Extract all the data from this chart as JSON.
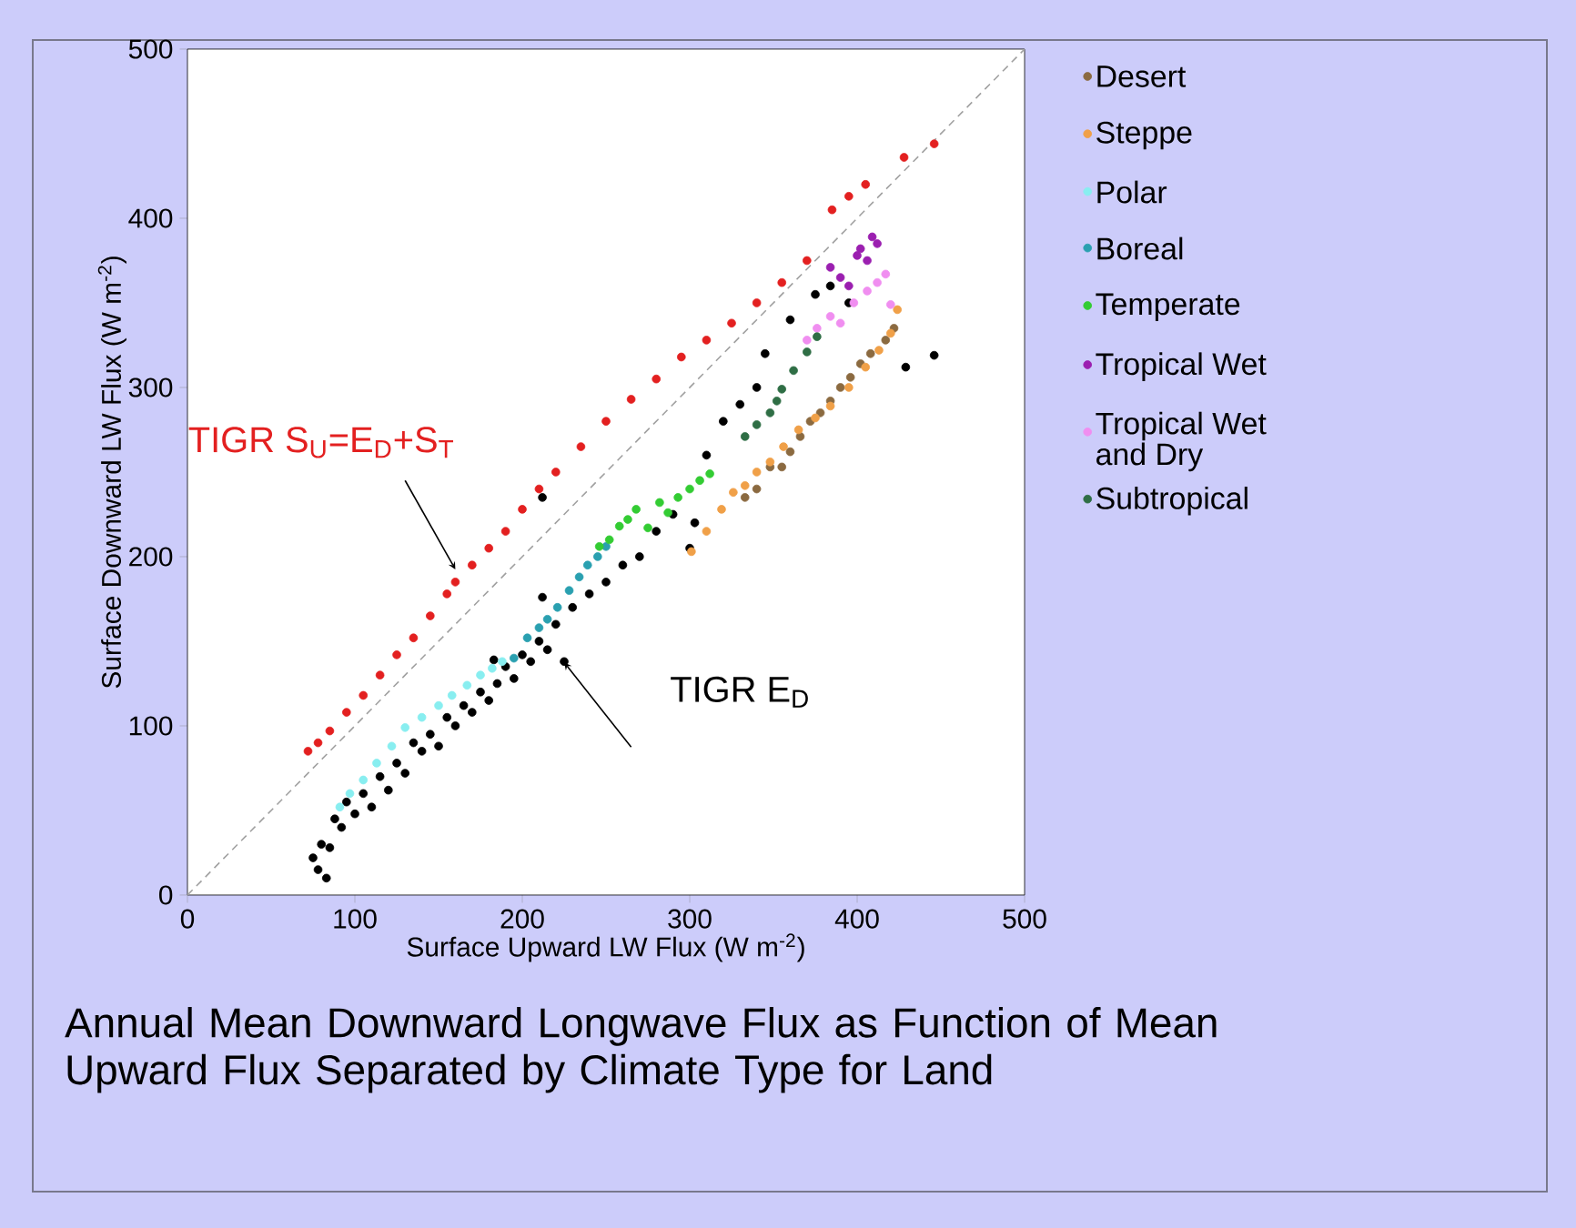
{
  "chart_data": {
    "type": "scatter",
    "title": "Annual Mean Downward Longwave Flux as Function of Mean Upward Flux Separated by Climate Type for Land",
    "xlabel": "Surface Upward LW Flux (W m$^{-2}$)",
    "ylabel": "Surface Downward LW Flux (W m$^{-2}$)",
    "xlim": [
      0,
      500
    ],
    "ylim": [
      0,
      500
    ],
    "xticks": [
      0,
      100,
      200,
      300,
      400,
      500
    ],
    "yticks": [
      0,
      100,
      200,
      300,
      400,
      500
    ],
    "marker": "circle",
    "legend": "right",
    "annotations": [
      "TIGR S$_{U}$=E$_{D}$+S$_{T}$",
      "TIGR E$_{D}$"
    ],
    "series": [
      {
        "type": "line",
        "line_style": "dashed",
        "marker": "none",
        "color": "#a0a0a0",
        "x": [
          0,
          500
        ],
        "values": [
          0,
          500
        ]
      },
      {
        "color": "#e32020",
        "x": [
          72,
          78,
          85,
          95,
          105,
          115,
          125,
          135,
          145,
          155,
          160,
          170,
          180,
          190,
          200,
          210,
          220,
          235,
          250,
          265,
          280,
          295,
          310,
          325,
          340,
          355,
          370,
          385,
          395,
          405,
          428,
          446
        ],
        "values": [
          85,
          90,
          97,
          108,
          118,
          130,
          142,
          152,
          165,
          178,
          185,
          195,
          205,
          215,
          228,
          240,
          250,
          265,
          280,
          293,
          305,
          318,
          328,
          338,
          350,
          362,
          375,
          405,
          413,
          420,
          436,
          444
        ]
      },
      {
        "color": "#000000",
        "x": [
          75,
          78,
          80,
          83,
          85,
          88,
          92,
          95,
          100,
          105,
          110,
          115,
          120,
          125,
          130,
          135,
          140,
          145,
          150,
          155,
          160,
          165,
          170,
          175,
          180,
          183,
          185,
          190,
          195,
          200,
          205,
          210,
          212,
          212,
          215,
          220,
          225,
          230,
          240,
          250,
          260,
          270,
          280,
          290,
          300,
          303,
          310,
          320,
          330,
          340,
          345,
          360,
          375,
          384,
          395,
          429,
          446
        ],
        "values": [
          22,
          15,
          30,
          10,
          28,
          45,
          40,
          55,
          48,
          60,
          52,
          70,
          62,
          78,
          72,
          90,
          85,
          95,
          88,
          105,
          100,
          112,
          108,
          120,
          115,
          139,
          125,
          135,
          128,
          142,
          138,
          150,
          176,
          235,
          145,
          160,
          138,
          170,
          178,
          185,
          195,
          200,
          215,
          225,
          205,
          220,
          260,
          280,
          290,
          300,
          320,
          340,
          355,
          360,
          350,
          312,
          319
        ]
      },
      {
        "name": "Desert",
        "color": "#8b6a40",
        "x": [
          333,
          340,
          348,
          355,
          360,
          366,
          372,
          378,
          384,
          390,
          396,
          402,
          408,
          417,
          422
        ],
        "values": [
          235,
          240,
          253,
          253,
          262,
          271,
          280,
          285,
          292,
          300,
          306,
          314,
          320,
          328,
          335
        ]
      },
      {
        "name": "Steppe",
        "color": "#f0a048",
        "x": [
          301,
          310,
          319,
          326,
          333,
          340,
          348,
          356,
          365,
          375,
          384,
          395,
          405,
          413,
          420,
          424
        ],
        "values": [
          203,
          215,
          228,
          238,
          242,
          250,
          256,
          265,
          275,
          282,
          289,
          300,
          312,
          322,
          332,
          346
        ]
      },
      {
        "name": "Polar",
        "color": "#88eef0",
        "x": [
          91,
          97,
          105,
          113,
          122,
          130,
          140,
          150,
          158,
          167,
          175,
          182,
          188
        ],
        "values": [
          52,
          60,
          68,
          78,
          88,
          99,
          105,
          112,
          118,
          124,
          130,
          134,
          138
        ]
      },
      {
        "name": "Boreal",
        "color": "#2aa0b0",
        "x": [
          195,
          203,
          210,
          215,
          221,
          228,
          234,
          239,
          245,
          250
        ],
        "values": [
          140,
          152,
          158,
          163,
          170,
          180,
          188,
          195,
          200,
          206
        ]
      },
      {
        "name": "Temperate",
        "color": "#33cc33",
        "x": [
          246,
          252,
          258,
          263,
          268,
          275,
          282,
          287,
          293,
          300,
          306,
          312
        ],
        "values": [
          206,
          210,
          218,
          222,
          228,
          217,
          232,
          226,
          235,
          240,
          245,
          249
        ]
      },
      {
        "name": "Tropical Wet",
        "color": "#9b1fb0",
        "x": [
          384,
          390,
          395,
          400,
          402,
          406,
          409,
          412
        ],
        "values": [
          371,
          365,
          360,
          378,
          382,
          375,
          389,
          385
        ]
      },
      {
        "name": "Tropical Wet and Dry",
        "color": "#f08ef0",
        "x": [
          370,
          376,
          384,
          390,
          398,
          406,
          412,
          417,
          420
        ],
        "values": [
          328,
          335,
          342,
          338,
          350,
          357,
          362,
          367,
          349
        ]
      },
      {
        "name": "Subtropical",
        "color": "#2f6e45",
        "x": [
          333,
          340,
          348,
          352,
          355,
          362,
          370,
          376
        ],
        "values": [
          271,
          278,
          285,
          292,
          299,
          310,
          321,
          330
        ]
      }
    ]
  }
}
